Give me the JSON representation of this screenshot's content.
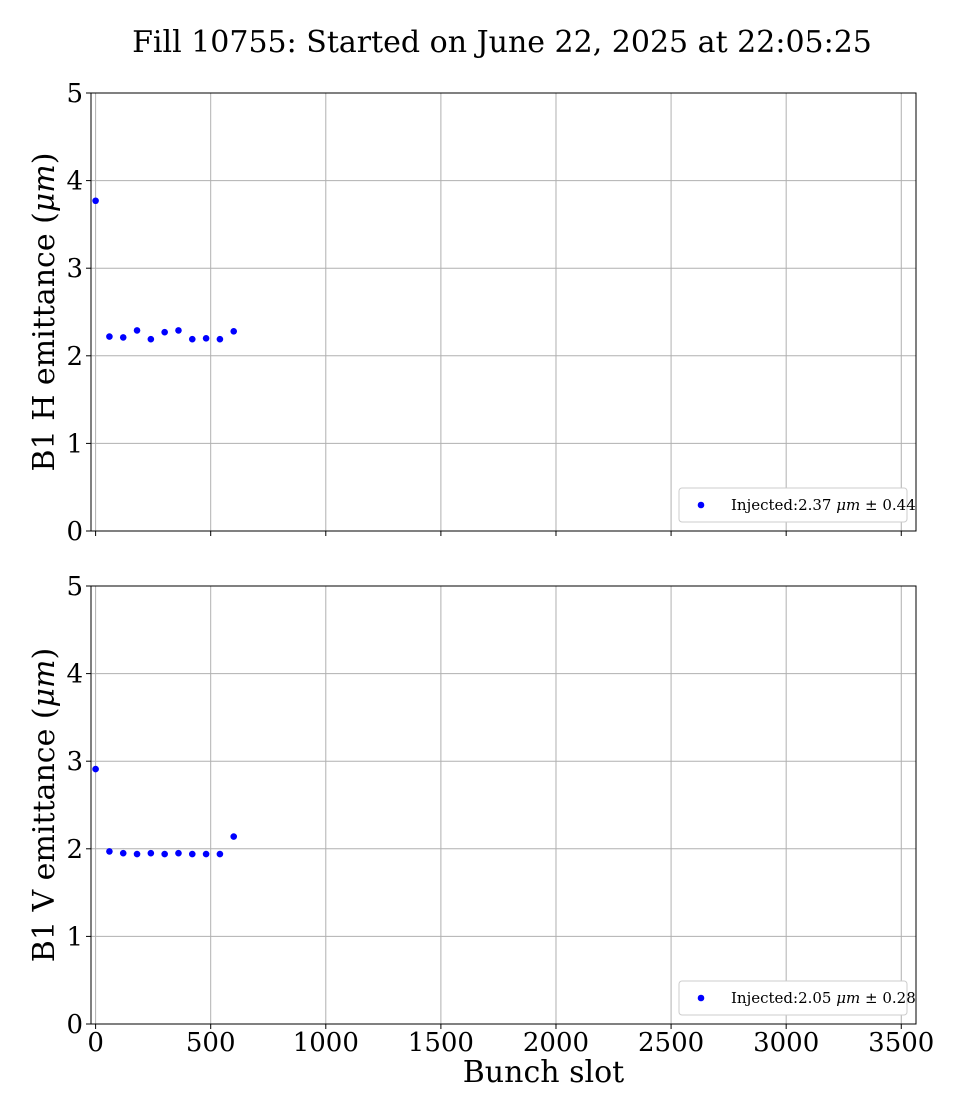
{
  "figure": {
    "title": "Fill 10755: Started on June 22, 2025 at 22:05:25"
  },
  "colors": {
    "points": "#0000ff",
    "grid": "#b0b0b0",
    "axis": "#000000",
    "legend_border": "#cccccc"
  },
  "chart_data": [
    {
      "type": "scatter",
      "title": "",
      "xlabel": "",
      "ylabel": "B1 H emittance (μm)",
      "xlim": [
        -20,
        3564
      ],
      "ylim": [
        0,
        5
      ],
      "x_ticks": [
        0,
        500,
        1000,
        1500,
        2000,
        2500,
        3000,
        3500
      ],
      "x_tick_labels_visible": false,
      "y_ticks": [
        0,
        1,
        2,
        3,
        4,
        5
      ],
      "grid": true,
      "legend_position": "bottom-right",
      "series": [
        {
          "name": "Injected:2.37 μm ± 0.44",
          "x": [
            0,
            60,
            120,
            180,
            240,
            300,
            360,
            420,
            480,
            540,
            600
          ],
          "y": [
            3.77,
            2.22,
            2.21,
            2.29,
            2.19,
            2.27,
            2.29,
            2.19,
            2.2,
            2.19,
            2.28
          ]
        }
      ]
    },
    {
      "type": "scatter",
      "title": "",
      "xlabel": "Bunch slot",
      "ylabel": "B1 V emittance (μm)",
      "xlim": [
        -20,
        3564
      ],
      "ylim": [
        0,
        5
      ],
      "x_ticks": [
        0,
        500,
        1000,
        1500,
        2000,
        2500,
        3000,
        3500
      ],
      "x_tick_labels_visible": true,
      "y_ticks": [
        0,
        1,
        2,
        3,
        4,
        5
      ],
      "grid": true,
      "legend_position": "bottom-right",
      "series": [
        {
          "name": "Injected:2.05 μm ± 0.28",
          "x": [
            0,
            60,
            120,
            180,
            240,
            300,
            360,
            420,
            480,
            540,
            600
          ],
          "y": [
            2.91,
            1.97,
            1.95,
            1.94,
            1.95,
            1.94,
            1.95,
            1.94,
            1.94,
            1.94,
            2.14
          ]
        }
      ]
    }
  ]
}
